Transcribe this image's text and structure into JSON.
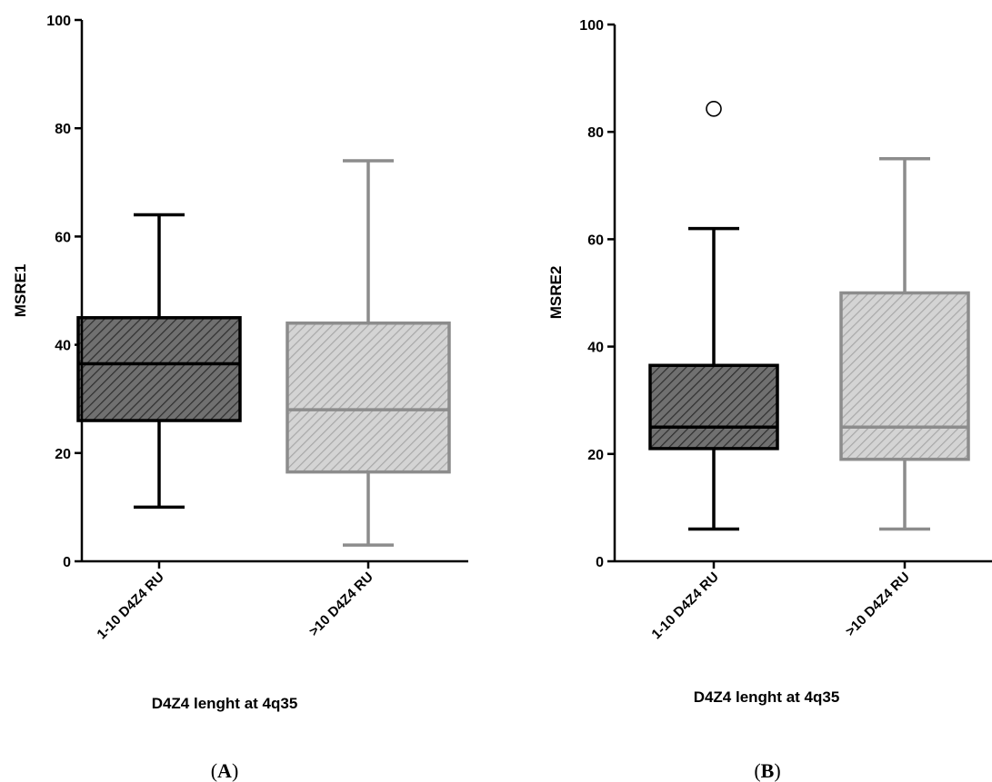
{
  "chart_data": [
    {
      "type": "box",
      "panel_label": "A",
      "xlabel": "D4Z4 lenght at 4q35",
      "ylabel": "MSRE1",
      "ylim": [
        0,
        100
      ],
      "yticks": [
        0,
        20,
        40,
        60,
        80,
        100
      ],
      "categories": [
        "1-10 D4Z4 RU",
        ">10 D4Z4 RU"
      ],
      "boxes": [
        {
          "category": "1-10 D4Z4 RU",
          "min": 10,
          "q1": 26,
          "median": 36.5,
          "q3": 45,
          "max": 64,
          "outliers": [],
          "fill": "#707070",
          "stroke": "#000000"
        },
        {
          "category": ">10 D4Z4 RU",
          "min": 3,
          "q1": 16.5,
          "median": 28,
          "q3": 44,
          "max": 74,
          "outliers": [],
          "fill": "#d4d4d4",
          "stroke": "#8c8c8c"
        }
      ]
    },
    {
      "type": "box",
      "panel_label": "B",
      "xlabel": "D4Z4 lenght at 4q35",
      "ylabel": "MSRE2",
      "ylim": [
        0,
        100
      ],
      "yticks": [
        0,
        20,
        40,
        60,
        80,
        100
      ],
      "categories": [
        "1-10 D4Z4 RU",
        ">10 D4Z4 RU"
      ],
      "boxes": [
        {
          "category": "1-10 D4Z4 RU",
          "min": 6,
          "q1": 21,
          "median": 25,
          "q3": 36.5,
          "max": 62,
          "outliers": [
            84.3
          ],
          "fill": "#707070",
          "stroke": "#000000"
        },
        {
          "category": ">10 D4Z4 RU",
          "min": 6,
          "q1": 19,
          "median": 25,
          "q3": 50,
          "max": 75,
          "outliers": [],
          "fill": "#d4d4d4",
          "stroke": "#8c8c8c"
        }
      ]
    }
  ]
}
